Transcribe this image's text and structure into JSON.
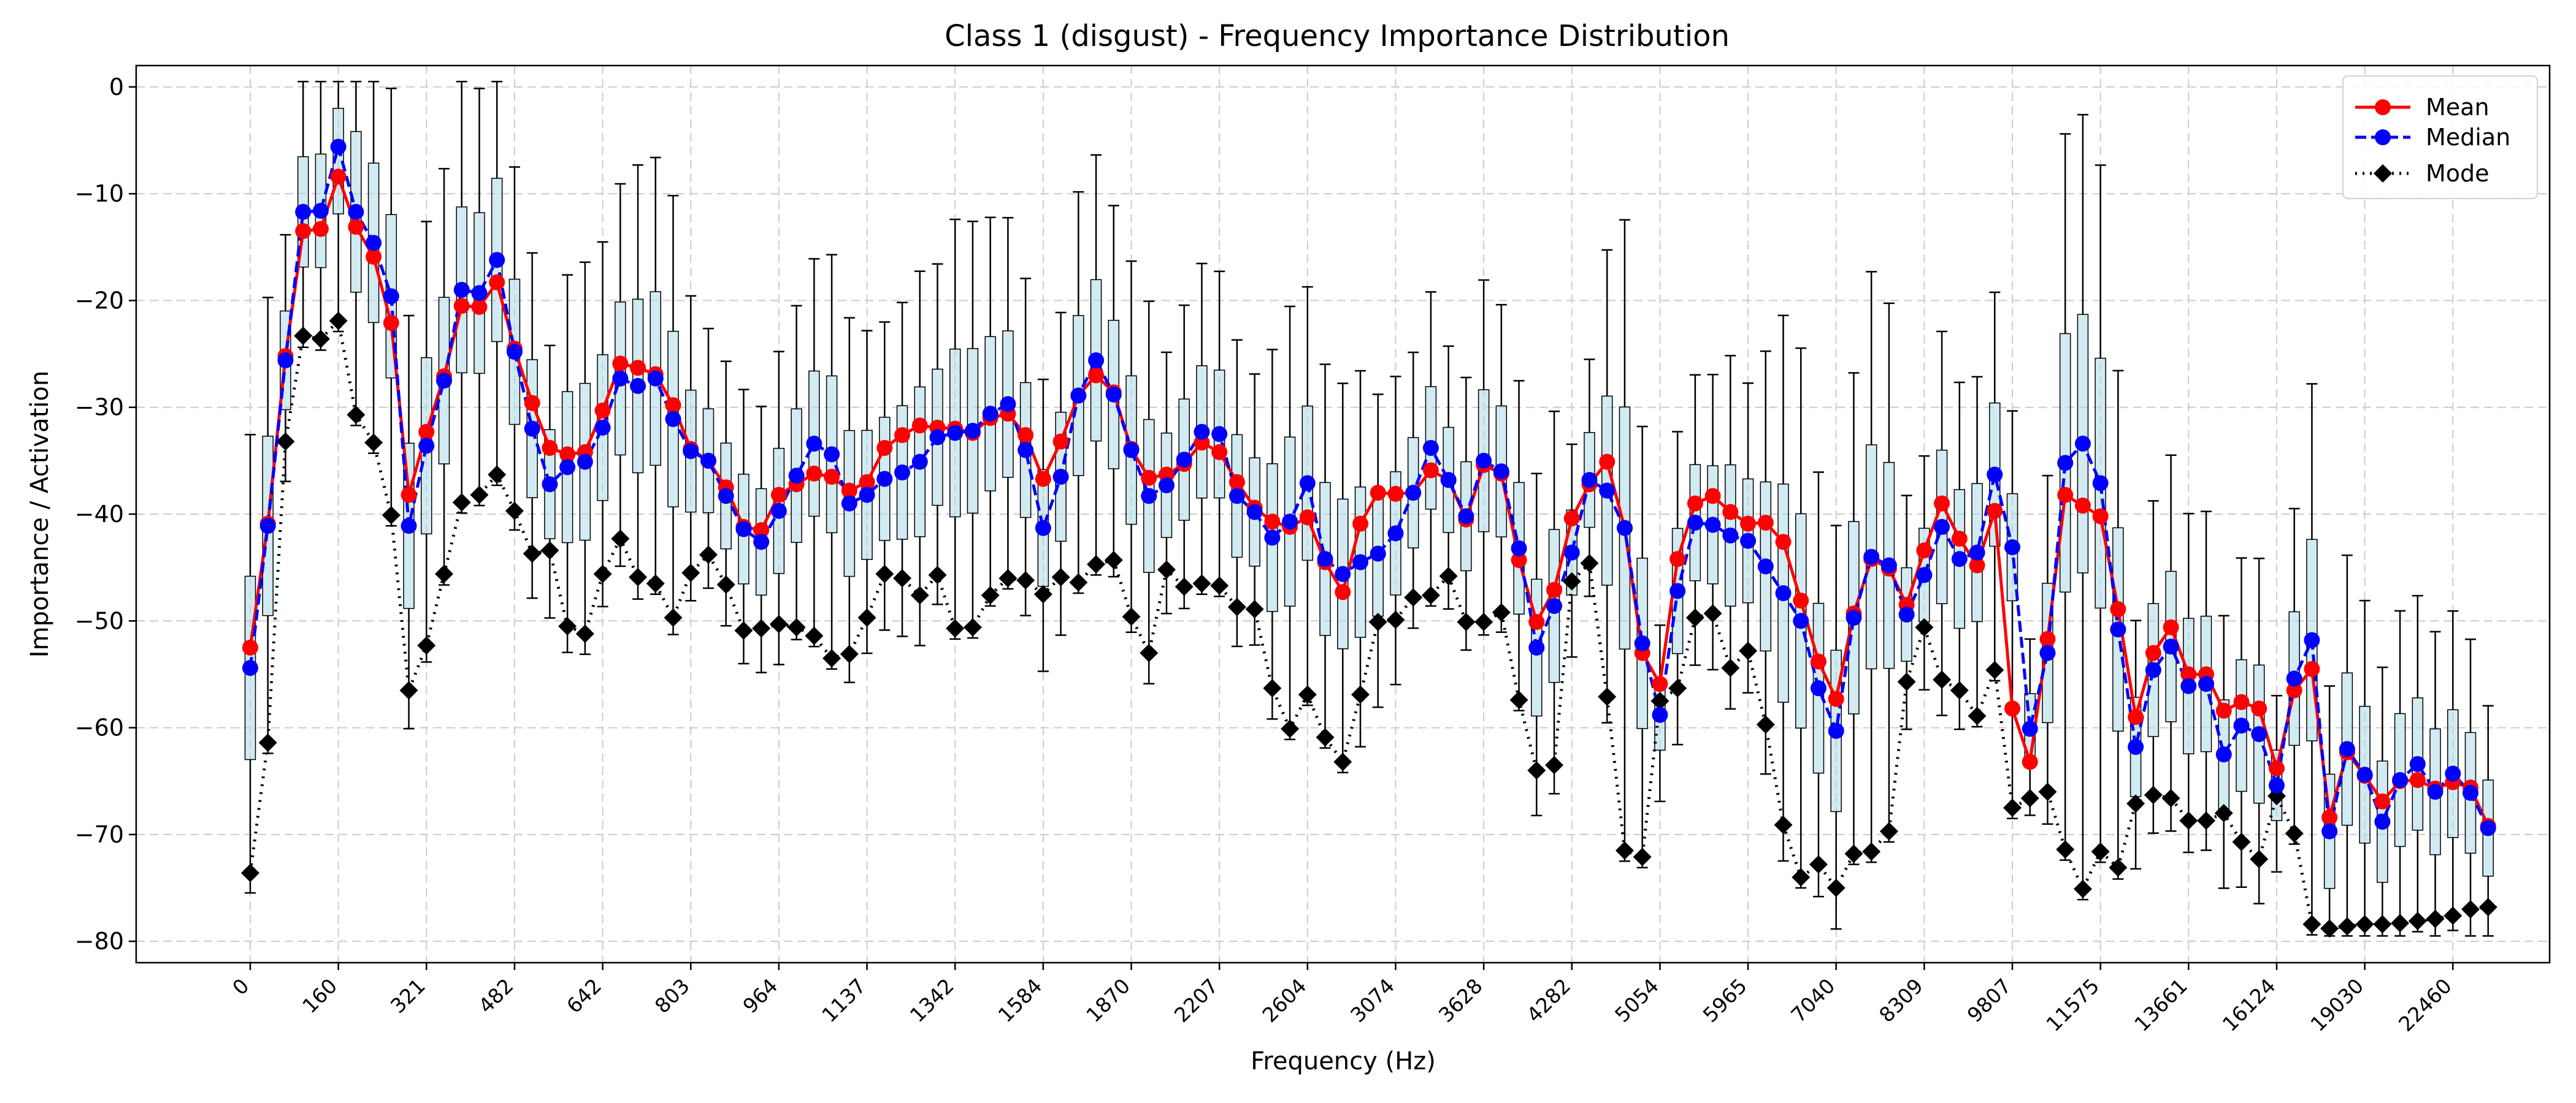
{
  "chart_data": {
    "type": "box",
    "title": "Class 1 (disgust) - Frequency Importance Distribution",
    "xlabel": "Frequency (Hz)",
    "ylabel": "Importance / Activation",
    "ylim": [
      -82,
      2
    ],
    "yticks": [
      0,
      -10,
      -20,
      -30,
      -40,
      -50,
      -60,
      -70,
      -80
    ],
    "ytick_labels": [
      "0",
      "−10",
      "−20",
      "−30",
      "−40",
      "−50",
      "−60",
      "−70",
      "−80"
    ],
    "xtick_labels": [
      "0",
      "160",
      "321",
      "482",
      "642",
      "803",
      "964",
      "1137",
      "1342",
      "1584",
      "1870",
      "2207",
      "2604",
      "3074",
      "3628",
      "4282",
      "5054",
      "5965",
      "7040",
      "8309",
      "9807",
      "11575",
      "13661",
      "16124",
      "19030",
      "22460"
    ],
    "xtick_every": 5,
    "grid": true,
    "legend_position": "top-right",
    "colors": {
      "mean": "#ff0000",
      "median": "#0000ff",
      "mode": "#000000",
      "box_fill": "#add8e6",
      "box_edge": "#000000",
      "box_median": "#ff7f0e",
      "grid": "#cccccc"
    },
    "series": [
      {
        "name": "Mean",
        "values": [
          -52.5,
          -40.9,
          -25.2,
          -13.5,
          -13.3,
          -8.4,
          -13.1,
          -15.9,
          -22.1,
          -38.2,
          -32.3,
          -27.1,
          -20.5,
          -20.6,
          -18.3,
          -24.5,
          -29.6,
          -33.8,
          -34.4,
          -34.2,
          -30.3,
          -25.9,
          -26.3,
          -26.9,
          -29.8,
          -33.9,
          -35.0,
          -37.5,
          -41.2,
          -41.5,
          -38.2,
          -37.2,
          -36.2,
          -36.5,
          -37.8,
          -37.0,
          -33.8,
          -32.6,
          -31.7,
          -31.9,
          -32.0,
          -32.4,
          -31.0,
          -30.6,
          -32.6,
          -36.7,
          -33.2,
          -28.9,
          -27.0,
          -28.6,
          -33.9,
          -36.6,
          -36.3,
          -35.3,
          -33.3,
          -34.2,
          -37.0,
          -39.4,
          -40.7,
          -41.2,
          -40.3,
          -44.5,
          -47.3,
          -40.9,
          -38.0,
          -38.1,
          -38.0,
          -35.9,
          -36.8,
          -40.5,
          -35.4,
          -36.2,
          -44.3,
          -50.1,
          -47.1,
          -40.4,
          -37.2,
          -35.1,
          -41.3,
          -53.0,
          -55.9,
          -44.2,
          -39.0,
          -38.3,
          -39.8,
          -40.9,
          -40.8,
          -42.6,
          -48.1,
          -53.8,
          -57.3,
          -49.3,
          -44.2,
          -45.1,
          -48.5,
          -43.4,
          -39.0,
          -42.3,
          -44.8,
          -39.7,
          -58.2,
          -63.2,
          -51.7,
          -38.2,
          -39.2,
          -40.2,
          -48.9,
          -59.0,
          -53.0,
          -50.6,
          -55.0,
          -55.0,
          -58.4,
          -57.6,
          -58.2,
          -63.8,
          -56.5,
          -54.5,
          -68.4,
          -62.3,
          -64.5,
          -66.9,
          -65.0,
          -64.9,
          -65.7,
          -65.1,
          -65.6,
          -69.2
        ]
      },
      {
        "name": "Median",
        "values": [
          -54.4,
          -41.1,
          -25.6,
          -11.7,
          -11.6,
          -5.6,
          -11.7,
          -14.6,
          -19.6,
          -41.1,
          -33.6,
          -27.5,
          -19.0,
          -19.3,
          -16.2,
          -24.8,
          -32.0,
          -37.2,
          -35.6,
          -35.1,
          -31.9,
          -27.3,
          -28.0,
          -27.3,
          -31.1,
          -34.1,
          -35.0,
          -38.3,
          -41.4,
          -42.6,
          -39.7,
          -36.4,
          -33.4,
          -34.4,
          -39.0,
          -38.2,
          -36.7,
          -36.1,
          -35.1,
          -32.8,
          -32.4,
          -32.2,
          -30.6,
          -29.7,
          -34.0,
          -41.3,
          -36.5,
          -28.9,
          -25.6,
          -28.8,
          -34.0,
          -38.3,
          -37.3,
          -34.9,
          -32.3,
          -32.5,
          -38.3,
          -39.8,
          -42.2,
          -40.7,
          -37.1,
          -44.2,
          -45.6,
          -44.5,
          -43.7,
          -41.8,
          -38.0,
          -33.8,
          -36.8,
          -40.2,
          -35.0,
          -36.0,
          -43.2,
          -52.5,
          -48.6,
          -43.6,
          -36.8,
          -37.8,
          -41.3,
          -52.1,
          -58.8,
          -47.2,
          -40.8,
          -41.0,
          -42.0,
          -42.5,
          -44.9,
          -47.4,
          -50.0,
          -56.3,
          -60.3,
          -49.7,
          -44.0,
          -44.8,
          -49.4,
          -45.7,
          -41.2,
          -44.2,
          -43.6,
          -36.3,
          -43.1,
          -60.1,
          -53.0,
          -35.2,
          -33.4,
          -37.1,
          -50.8,
          -61.8,
          -54.6,
          -52.4,
          -56.1,
          -55.9,
          -62.5,
          -59.8,
          -60.6,
          -65.4,
          -55.4,
          -51.8,
          -69.7,
          -62.0,
          -64.4,
          -68.8,
          -64.9,
          -63.4,
          -66.0,
          -64.3,
          -66.1,
          -69.4
        ]
      },
      {
        "name": "Mode",
        "values": [
          -73.6,
          -61.4,
          -33.2,
          -23.3,
          -23.6,
          -21.9,
          -30.7,
          -33.3,
          -40.1,
          -56.5,
          -52.3,
          -45.6,
          -38.9,
          -38.2,
          -36.3,
          -39.7,
          -43.7,
          -43.4,
          -50.5,
          -51.2,
          -45.6,
          -42.3,
          -45.9,
          -46.5,
          -49.7,
          -45.5,
          -43.8,
          -46.6,
          -50.9,
          -50.7,
          -50.3,
          -50.6,
          -51.4,
          -53.5,
          -53.1,
          -49.7,
          -45.6,
          -46.0,
          -47.6,
          -45.7,
          -50.7,
          -50.6,
          -47.6,
          -46.0,
          -46.2,
          -47.5,
          -45.9,
          -46.4,
          -44.7,
          -44.3,
          -49.6,
          -53.0,
          -45.2,
          -46.8,
          -46.5,
          -46.7,
          -48.7,
          -48.9,
          -56.3,
          -60.1,
          -56.9,
          -60.9,
          -63.2,
          -56.9,
          -50.1,
          -49.9,
          -47.8,
          -47.6,
          -45.8,
          -50.1,
          -50.1,
          -49.2,
          -57.4,
          -64.0,
          -63.5,
          -46.3,
          -44.6,
          -57.1,
          -71.5,
          -72.1,
          -57.5,
          -56.3,
          -49.7,
          -49.3,
          -54.4,
          -52.8,
          -59.7,
          -69.1,
          -74.0,
          -72.8,
          -75.0,
          -71.8,
          -71.6,
          -69.7,
          -55.7,
          -50.6,
          -55.5,
          -56.5,
          -58.9,
          -54.6,
          -67.5,
          -66.6,
          -66.0,
          -71.4,
          -75.1,
          -71.6,
          -73.1,
          -67.1,
          -66.3,
          -66.6,
          -68.7,
          -68.7,
          -68.0,
          -70.7,
          -72.3,
          -66.4,
          -69.9,
          -78.4,
          -78.8,
          -78.6,
          -78.4,
          -78.4,
          -78.3,
          -78.1,
          -77.9,
          -77.6,
          -77.0,
          -76.8
        ]
      }
    ]
  }
}
